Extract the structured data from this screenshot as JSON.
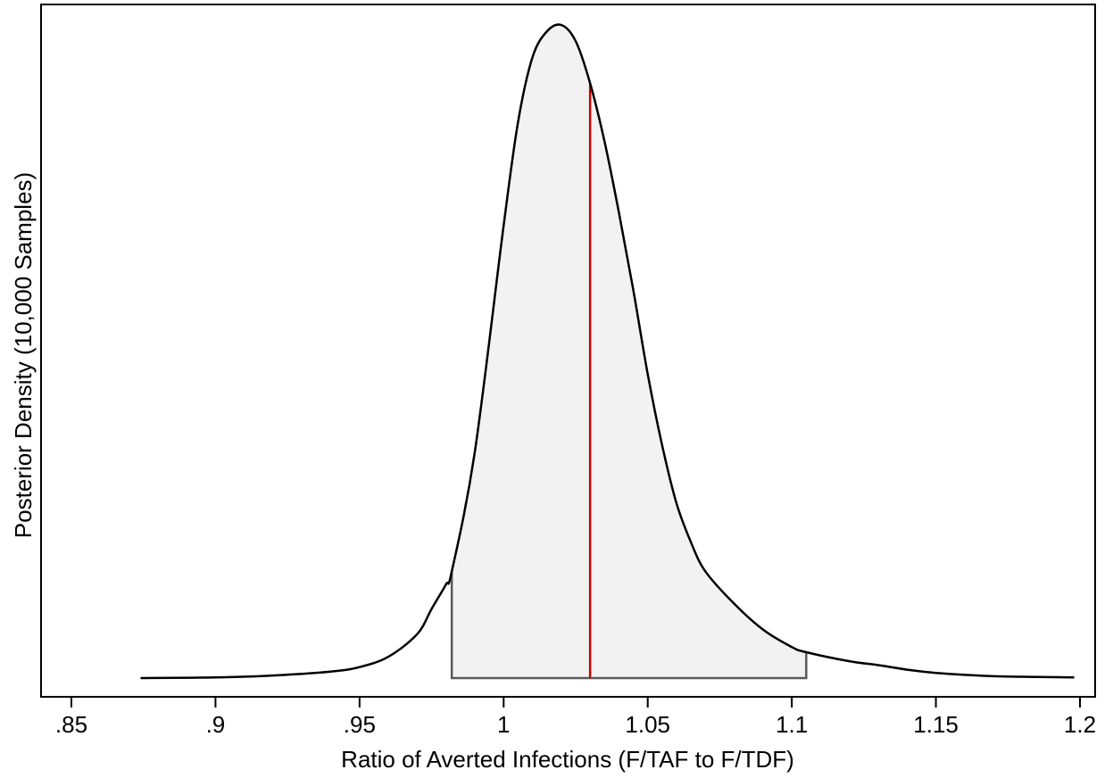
{
  "chart_data": {
    "type": "area",
    "xlabel": "Ratio of Averted Infections (F/TAF to F/TDF)",
    "ylabel": "Posterior Density (10,000 Samples)",
    "xlim": [
      0.85,
      1.2
    ],
    "ylim": [
      0,
      1.05
    ],
    "x_tick_labels": [
      ".85",
      ".9",
      ".95",
      "1",
      "1.05",
      "1.1",
      "1.15",
      "1.2"
    ],
    "x_ticks": [
      0.85,
      0.9,
      0.95,
      1.0,
      1.05,
      1.1,
      1.15,
      1.2
    ],
    "y_ticks_shown": false,
    "grid": false,
    "legend": "none",
    "series": [
      {
        "x": [
          0.874,
          0.9,
          0.92,
          0.94,
          0.95,
          0.96,
          0.97,
          0.975,
          0.98,
          0.982,
          0.99,
          1.0,
          1.005,
          1.01,
          1.015,
          1.02,
          1.025,
          1.03,
          1.035,
          1.04,
          1.045,
          1.05,
          1.055,
          1.06,
          1.065,
          1.07,
          1.08,
          1.09,
          1.1,
          1.105,
          1.12,
          1.13,
          1.14,
          1.15,
          1.17,
          1.198
        ],
        "y": [
          0.0,
          0.001,
          0.004,
          0.01,
          0.017,
          0.033,
          0.068,
          0.107,
          0.145,
          0.165,
          0.35,
          0.7,
          0.86,
          0.96,
          1.0,
          1.01,
          0.985,
          0.92,
          0.83,
          0.72,
          0.6,
          0.47,
          0.36,
          0.27,
          0.21,
          0.165,
          0.115,
          0.075,
          0.048,
          0.04,
          0.026,
          0.02,
          0.013,
          0.008,
          0.003,
          0.001
        ]
      }
    ],
    "credible_interval": [
      0.982,
      1.105
    ],
    "point_estimate": 1.03,
    "colors": {
      "curve": "#000000",
      "interval_fill": "#f2f2f2",
      "interval_edge": "#595959",
      "point_estimate_line": "#cc0000",
      "frame": "#000000"
    }
  }
}
